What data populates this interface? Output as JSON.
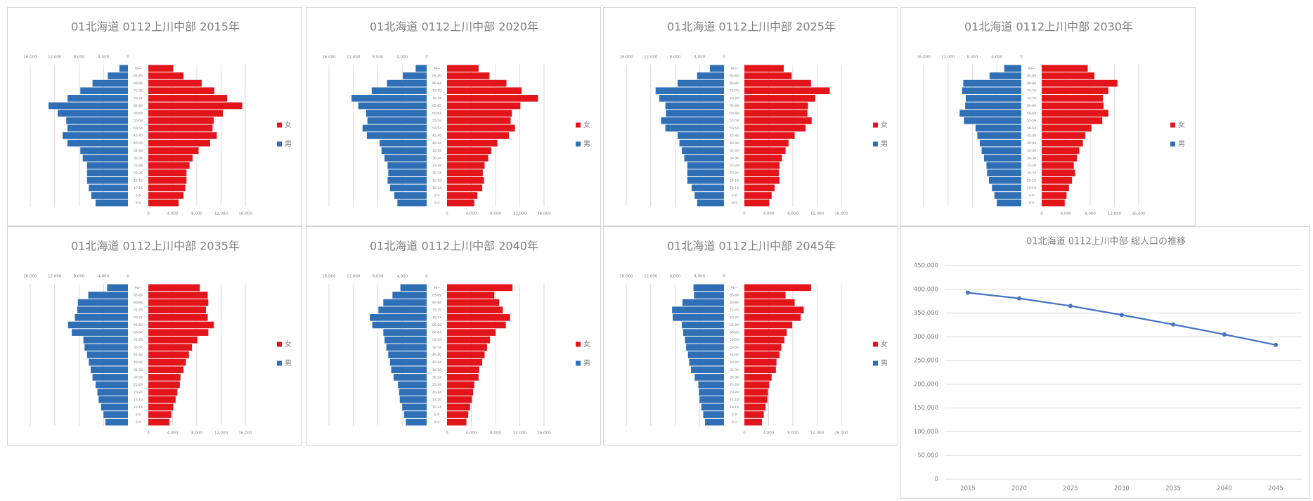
{
  "chart_data": [
    {
      "type": "pyramid",
      "title": "01北海道 0112上川中部 2015年",
      "categories": [
        "0-4",
        "5-9",
        "10-14",
        "15-19",
        "20-24",
        "25-29",
        "30-34",
        "35-39",
        "40-44",
        "45-49",
        "50-54",
        "55-59",
        "60-64",
        "65-69",
        "70-74",
        "75-79",
        "80-84",
        "85-89",
        "90~"
      ],
      "series": [
        {
          "name": "女",
          "color": "#e3151b",
          "values": [
            5000,
            5800,
            6100,
            6300,
            6300,
            6800,
            7300,
            8300,
            10200,
            11300,
            10600,
            10800,
            12300,
            15500,
            13000,
            10900,
            8800,
            5800,
            4100
          ]
        },
        {
          "name": "男",
          "color": "#2f6fb5",
          "values": [
            5300,
            6000,
            6400,
            6700,
            6700,
            6700,
            7400,
            7800,
            9900,
            10700,
            9900,
            10100,
            11500,
            13000,
            9900,
            7800,
            5800,
            3300,
            1400
          ]
        }
      ],
      "xlim": [
        0,
        16000
      ],
      "xticks": [
        0,
        {
          "value": 4000,
          "label": "4,000"
        },
        {
          "value": 8000,
          "label": "8,000"
        },
        {
          "value": 12000,
          "label": "12,000"
        },
        {
          "value": 16000,
          "label": "16,000"
        }
      ],
      "grid": true
    },
    {
      "type": "pyramid",
      "title": "01北海道 0112上川中部 2020年",
      "categories": [
        "0-4",
        "5-9",
        "10-14",
        "15-19",
        "20-24",
        "25-29",
        "30-34",
        "35-39",
        "40-44",
        "45-49",
        "50-54",
        "55-59",
        "60-64",
        "65-69",
        "70-74",
        "75-79",
        "80-84",
        "85-89",
        "90~"
      ],
      "series": [
        {
          "name": "女",
          "color": "#e3151b",
          "values": [
            4500,
            5000,
            5800,
            6100,
            5900,
            6200,
            6800,
            7300,
            8300,
            10200,
            11200,
            10500,
            10700,
            12100,
            15000,
            12300,
            9800,
            7000,
            5200
          ]
        },
        {
          "name": "男",
          "color": "#2f6fb5",
          "values": [
            4800,
            5300,
            6000,
            6400,
            6300,
            6400,
            6900,
            7400,
            7700,
            9800,
            10500,
            9700,
            9900,
            11200,
            12300,
            9000,
            6500,
            3900,
            1800
          ]
        }
      ],
      "xlim": [
        0,
        16000
      ],
      "xticks": [
        0,
        {
          "value": 4000,
          "label": "4,000"
        },
        {
          "value": 8000,
          "label": "8,000"
        },
        {
          "value": 12000,
          "label": "12,000"
        },
        {
          "value": 16000,
          "label": "16,000"
        }
      ],
      "grid": true
    },
    {
      "type": "pyramid",
      "title": "01北海道 0112上川中部 2025年",
      "categories": [
        "0-4",
        "5-9",
        "10-14",
        "15-19",
        "20-24",
        "25-29",
        "30-34",
        "35-39",
        "40-44",
        "45-49",
        "50-54",
        "55-59",
        "60-64",
        "65-69",
        "70-74",
        "75-79",
        "80-84",
        "85-89",
        "90~"
      ],
      "series": [
        {
          "name": "女",
          "color": "#e3151b",
          "values": [
            4100,
            4500,
            5000,
            5800,
            5700,
            5800,
            6200,
            6800,
            7300,
            8300,
            10100,
            11100,
            10400,
            10500,
            11700,
            14100,
            11000,
            7800,
            6500
          ]
        },
        {
          "name": "男",
          "color": "#2f6fb5",
          "values": [
            4400,
            4800,
            5300,
            6000,
            6000,
            6000,
            6500,
            6900,
            7300,
            7600,
            9600,
            10300,
            9500,
            9600,
            10600,
            11200,
            7600,
            4400,
            2300
          ]
        }
      ],
      "xlim": [
        0,
        16000
      ],
      "xticks": [
        0,
        {
          "value": 4000,
          "label": "4,000"
        },
        {
          "value": 8000,
          "label": "8,000"
        },
        {
          "value": 12000,
          "label": "12,000"
        },
        {
          "value": 16000,
          "label": "16,000"
        }
      ],
      "grid": true
    },
    {
      "type": "pyramid",
      "title": "01北海道 0112上川中部 2030年",
      "categories": [
        "0-4",
        "5-9",
        "10-14",
        "15-19",
        "20-24",
        "25-29",
        "30-34",
        "35-39",
        "40-44",
        "45-49",
        "50-54",
        "55-59",
        "60-64",
        "65-69",
        "70-74",
        "75-79",
        "80-84",
        "85-89",
        "90~"
      ],
      "series": [
        {
          "name": "女",
          "color": "#e3151b",
          "values": [
            3800,
            4100,
            4500,
            5000,
            5500,
            5300,
            5800,
            6200,
            6800,
            7200,
            8200,
            10000,
            11000,
            10200,
            10100,
            11000,
            12500,
            8700,
            7600
          ]
        },
        {
          "name": "男",
          "color": "#2f6fb5",
          "values": [
            4000,
            4400,
            4800,
            5300,
            5600,
            5700,
            6100,
            6500,
            6800,
            7200,
            7500,
            9400,
            10100,
            9200,
            9100,
            9700,
            9500,
            5200,
            2800
          ]
        }
      ],
      "xlim": [
        0,
        16000
      ],
      "xticks": [
        0,
        {
          "value": 4000,
          "label": "4,000"
        },
        {
          "value": 8000,
          "label": "8,000"
        },
        {
          "value": 12000,
          "label": "12,000"
        },
        {
          "value": 16000,
          "label": "16,000"
        }
      ],
      "grid": true
    },
    {
      "type": "pyramid",
      "title": "01北海道 0112上川中部 2035年",
      "categories": [
        "0-4",
        "5-9",
        "10-14",
        "15-19",
        "20-24",
        "25-29",
        "30-34",
        "35-39",
        "40-44",
        "45-49",
        "50-54",
        "55-59",
        "60-64",
        "65-69",
        "70-74",
        "75-79",
        "80-84",
        "85-89",
        "90~"
      ],
      "series": [
        {
          "name": "女",
          "color": "#e3151b",
          "values": [
            3500,
            3800,
            4100,
            4500,
            4800,
            5200,
            5300,
            5800,
            6200,
            6700,
            7200,
            8100,
            9900,
            10800,
            9800,
            9500,
            9900,
            9800,
            8500
          ]
        },
        {
          "name": "男",
          "color": "#2f6fb5",
          "values": [
            3700,
            4000,
            4400,
            4800,
            5000,
            5300,
            5800,
            6100,
            6400,
            6700,
            7100,
            7300,
            9200,
            9800,
            8700,
            8300,
            8200,
            6500,
            3400
          ]
        }
      ],
      "xlim": [
        0,
        16000
      ],
      "xticks": [
        0,
        {
          "value": 4000,
          "label": "4,000"
        },
        {
          "value": 8000,
          "label": "8,000"
        },
        {
          "value": 12000,
          "label": "12,000"
        },
        {
          "value": 16000,
          "label": "16,000"
        }
      ],
      "grid": true
    },
    {
      "type": "pyramid",
      "title": "01北海道 0112上川中部 2040年",
      "categories": [
        "0-4",
        "5-9",
        "10-14",
        "15-19",
        "20-24",
        "25-29",
        "30-34",
        "35-39",
        "40-44",
        "45-49",
        "50-54",
        "55-59",
        "60-64",
        "65-69",
        "70-74",
        "75-79",
        "80-84",
        "85-89",
        "90~"
      ],
      "series": [
        {
          "name": "女",
          "color": "#e3151b",
          "values": [
            3200,
            3500,
            3800,
            4100,
            4300,
            4500,
            5200,
            5300,
            5800,
            6200,
            6600,
            7100,
            8000,
            9700,
            10400,
            9200,
            8600,
            7800,
            10800
          ]
        },
        {
          "name": "男",
          "color": "#2f6fb5",
          "values": [
            3400,
            3700,
            4000,
            4400,
            4500,
            4700,
            5400,
            5800,
            6000,
            6300,
            6600,
            6900,
            7100,
            8900,
            9300,
            7900,
            7100,
            5600,
            4300
          ]
        }
      ],
      "xlim": [
        0,
        16000
      ],
      "xticks": [
        0,
        {
          "value": 4000,
          "label": "4,000"
        },
        {
          "value": 8000,
          "label": "8,000"
        },
        {
          "value": 12000,
          "label": "12,000"
        },
        {
          "value": 16000,
          "label": "16,000"
        }
      ],
      "grid": true
    },
    {
      "type": "pyramid",
      "title": "01北海道 0112上川中部 2045年",
      "categories": [
        "0-4",
        "5-9",
        "10-14",
        "15-19",
        "20-24",
        "25-29",
        "30-34",
        "35-39",
        "40-44",
        "45-49",
        "50-54",
        "55-59",
        "60-64",
        "65-69",
        "70-74",
        "75-79",
        "80-84",
        "85-89",
        "90~"
      ],
      "series": [
        {
          "name": "女",
          "color": "#e3151b",
          "values": [
            2900,
            3200,
            3500,
            3800,
            3900,
            4100,
            4500,
            5200,
            5300,
            5800,
            6100,
            6600,
            7000,
            7900,
            9300,
            9800,
            8300,
            6800,
            11000
          ]
        },
        {
          "name": "男",
          "color": "#2f6fb5",
          "values": [
            3100,
            3400,
            3700,
            4000,
            4100,
            4200,
            4800,
            5400,
            5700,
            5900,
            6200,
            6400,
            6700,
            6900,
            8400,
            8500,
            6800,
            4900,
            5000
          ]
        }
      ],
      "xlim": [
        0,
        16000
      ],
      "xticks": [
        0,
        {
          "value": 4000,
          "label": "4,000"
        },
        {
          "value": 8000,
          "label": "8,000"
        },
        {
          "value": 12000,
          "label": "12,000"
        },
        {
          "value": 16000,
          "label": "16,000"
        }
      ],
      "grid": true
    },
    {
      "type": "line",
      "title": "01北海道 0112上川中部 総人口の推移",
      "categories": [
        "2015",
        "2020",
        "2025",
        "2030",
        "2035",
        "2040",
        "2045"
      ],
      "series": [
        {
          "name": "総人口",
          "color": "#4472c4",
          "values": [
            393000,
            381000,
            365000,
            346000,
            326000,
            305000,
            283000
          ]
        }
      ],
      "ylim": [
        0,
        450000
      ],
      "yticks": [
        0,
        {
          "value": 50000,
          "label": "50,000"
        },
        {
          "value": 100000,
          "label": "100,000"
        },
        {
          "value": 150000,
          "label": "150,000"
        },
        {
          "value": 200000,
          "label": "200,000"
        },
        {
          "value": 250000,
          "label": "250,000"
        },
        {
          "value": 300000,
          "label": "300,000"
        },
        {
          "value": 350000,
          "label": "350,000"
        },
        {
          "value": 400000,
          "label": "400,000"
        },
        {
          "value": 450000,
          "label": "450,000"
        }
      ],
      "grid": true
    }
  ]
}
